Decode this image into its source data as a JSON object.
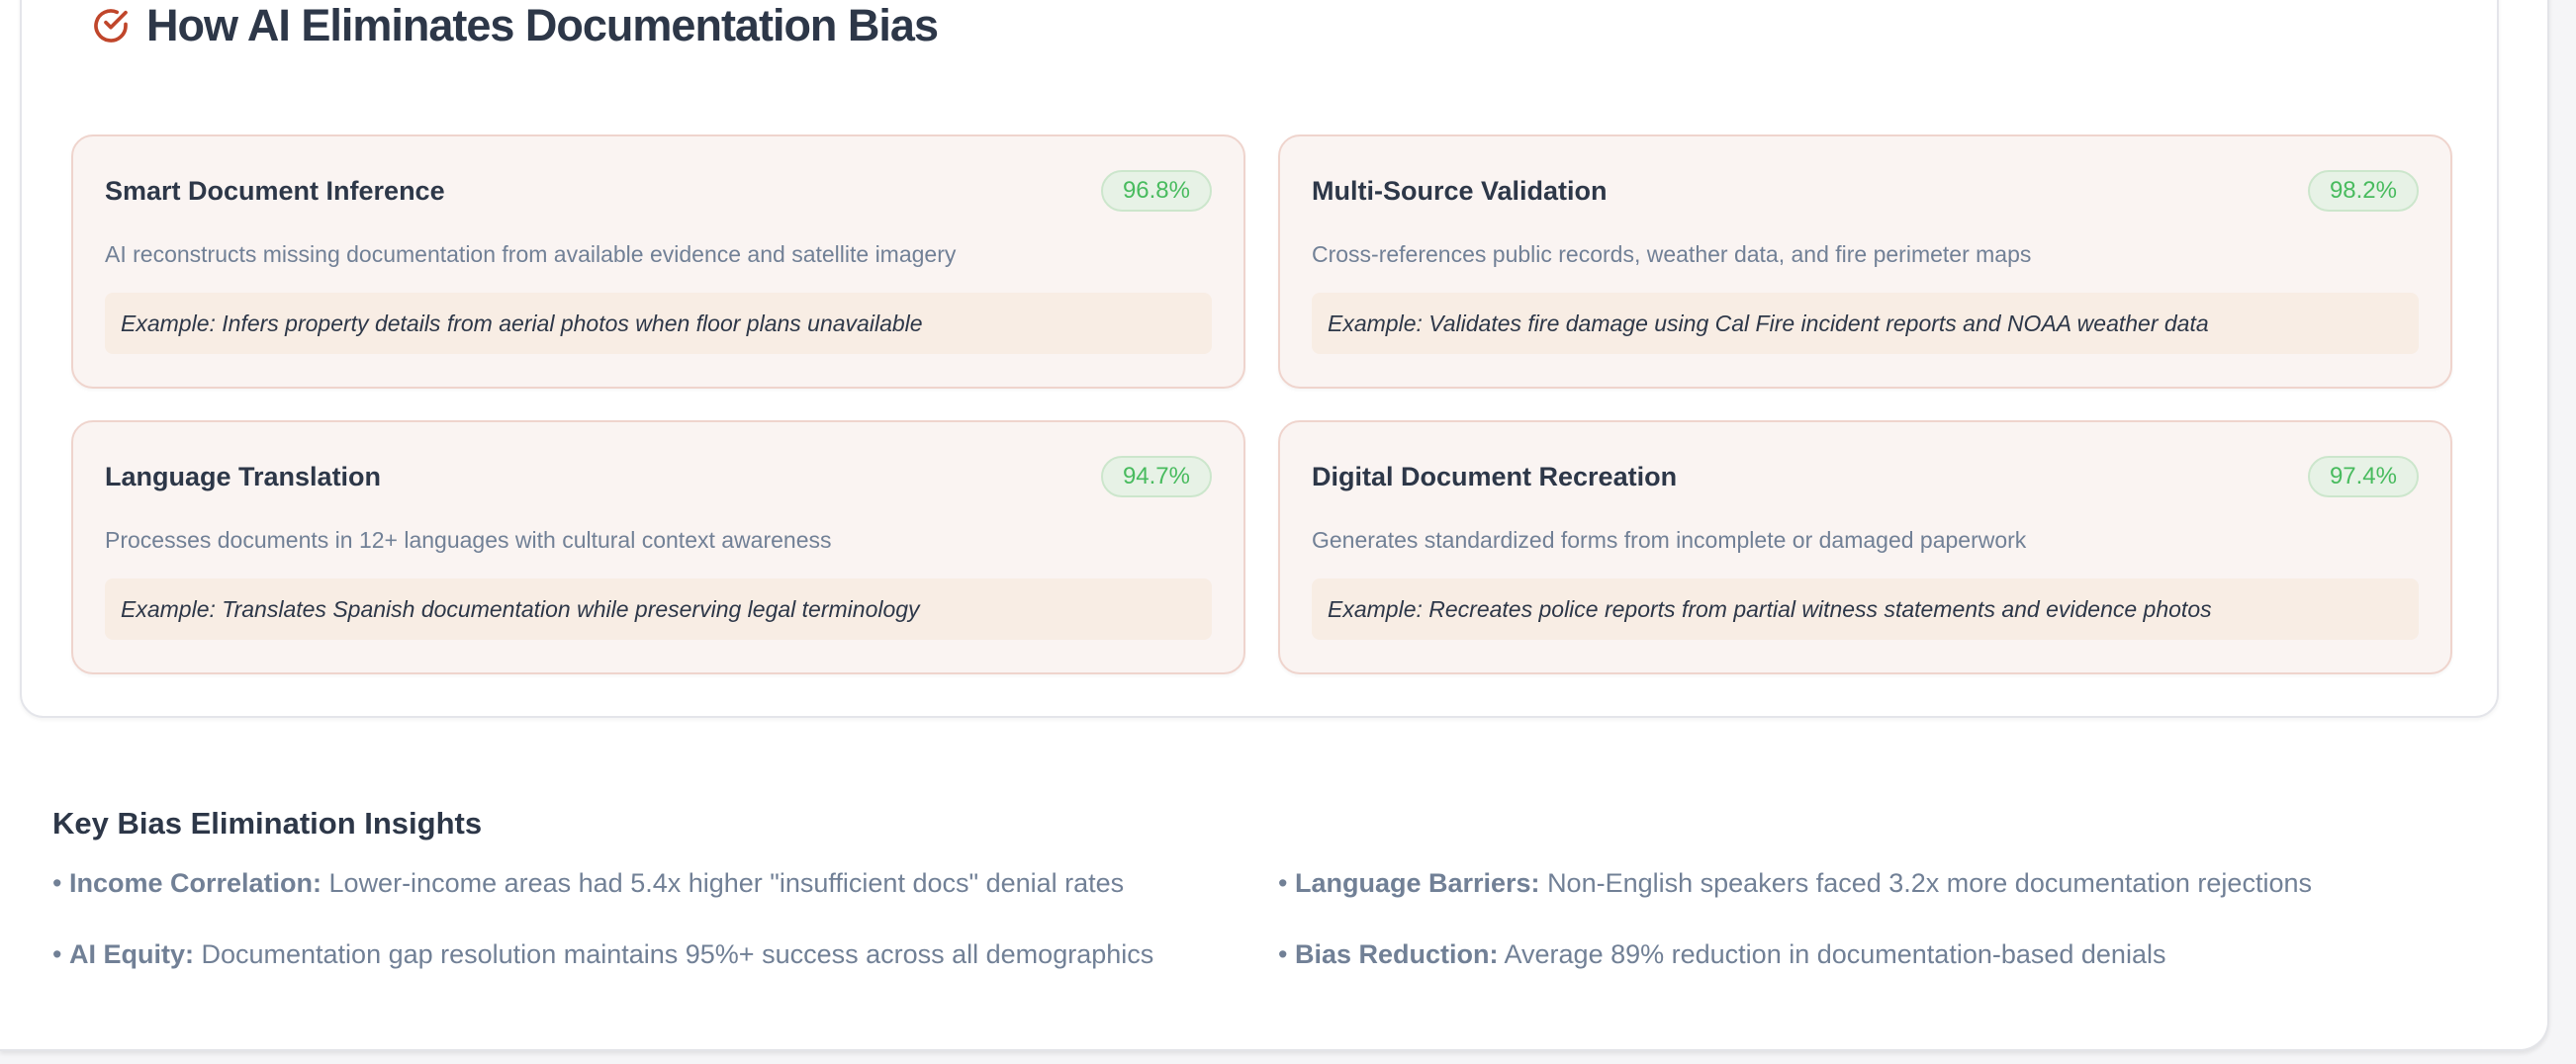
{
  "section": {
    "title": "How AI Eliminates Documentation Bias",
    "icon": "check-circle-icon",
    "accent_color": "#c0462b"
  },
  "cards": [
    {
      "title": "Smart Document Inference",
      "rate": "96.8%",
      "description": "AI reconstructs missing documentation from available evidence and satellite imagery",
      "example": "Example: Infers property details from aerial photos when floor plans unavailable"
    },
    {
      "title": "Multi-Source Validation",
      "rate": "98.2%",
      "description": "Cross-references public records, weather data, and fire perimeter maps",
      "example": "Example: Validates fire damage using Cal Fire incident reports and NOAA weather data"
    },
    {
      "title": "Language Translation",
      "rate": "94.7%",
      "description": "Processes documents in 12+ languages with cultural context awareness",
      "example": "Example: Translates Spanish documentation while preserving legal terminology"
    },
    {
      "title": "Digital Document Recreation",
      "rate": "97.4%",
      "description": "Generates standardized forms from incomplete or damaged paperwork",
      "example": "Example: Recreates police reports from partial witness statements and evidence photos"
    }
  ],
  "insights": {
    "title": "Key Bias Elimination Insights",
    "items": [
      {
        "label": "Income Correlation:",
        "text": "Lower-income areas had 5.4x higher \"insufficient docs\" denial rates"
      },
      {
        "label": "Language Barriers:",
        "text": "Non-English speakers faced 3.2x more documentation rejections"
      },
      {
        "label": "AI Equity:",
        "text": "Documentation gap resolution maintains 95%+ success across all demographics"
      },
      {
        "label": "Bias Reduction:",
        "text": "Average 89% reduction in documentation-based denials"
      }
    ]
  },
  "colors": {
    "badge_text": "#48bb5e",
    "card_bg": "#faf4f2",
    "card_border": "#efd4cd",
    "heading": "#2d3748",
    "muted": "#718096"
  }
}
